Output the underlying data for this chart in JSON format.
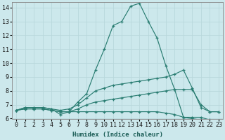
{
  "xlabel": "Humidex (Indice chaleur)",
  "bg_color": "#cce8ec",
  "grid_color": "#b8d8dc",
  "line_color": "#2a7d72",
  "xlim": [
    -0.5,
    23.5
  ],
  "ylim": [
    6,
    14.4
  ],
  "yticks": [
    6,
    7,
    8,
    9,
    10,
    11,
    12,
    13,
    14
  ],
  "xticks": [
    0,
    1,
    2,
    3,
    4,
    5,
    6,
    7,
    8,
    9,
    10,
    11,
    12,
    13,
    14,
    15,
    16,
    17,
    18,
    19,
    20,
    21,
    22,
    23
  ],
  "series": [
    {
      "x": [
        0,
        1,
        2,
        3,
        4,
        5,
        6,
        7,
        8,
        9,
        10,
        11,
        12,
        13,
        14,
        15,
        16,
        17,
        18,
        19,
        20,
        21,
        22,
        23
      ],
      "y": [
        6.6,
        6.8,
        6.8,
        6.8,
        6.7,
        6.3,
        6.5,
        7.2,
        7.8,
        9.5,
        11.0,
        12.7,
        13.0,
        14.1,
        14.3,
        13.0,
        11.8,
        9.8,
        8.1,
        6.1,
        6.0,
        5.9,
        5.85,
        5.85
      ]
    },
    {
      "x": [
        0,
        1,
        2,
        3,
        4,
        5,
        6,
        7,
        8,
        9,
        10,
        11,
        12,
        13,
        14,
        15,
        16,
        17,
        18,
        19,
        20,
        21,
        22,
        23
      ],
      "y": [
        6.6,
        6.8,
        6.8,
        6.8,
        6.7,
        6.6,
        6.7,
        7.0,
        7.5,
        8.0,
        8.2,
        8.4,
        8.5,
        8.6,
        8.7,
        8.8,
        8.9,
        9.0,
        9.2,
        9.5,
        8.2,
        6.8,
        6.5,
        6.5
      ]
    },
    {
      "x": [
        0,
        1,
        2,
        3,
        4,
        5,
        6,
        7,
        8,
        9,
        10,
        11,
        12,
        13,
        14,
        15,
        16,
        17,
        18,
        19,
        20,
        21,
        22,
        23
      ],
      "y": [
        6.6,
        6.7,
        6.7,
        6.7,
        6.6,
        6.5,
        6.5,
        6.7,
        7.0,
        7.2,
        7.3,
        7.4,
        7.5,
        7.6,
        7.7,
        7.8,
        7.9,
        8.0,
        8.1,
        8.1,
        8.1,
        7.0,
        6.5,
        6.5
      ]
    },
    {
      "x": [
        0,
        1,
        2,
        3,
        4,
        5,
        6,
        7,
        8,
        9,
        10,
        11,
        12,
        13,
        14,
        15,
        16,
        17,
        18,
        19,
        20,
        21,
        22,
        23
      ],
      "y": [
        6.6,
        6.7,
        6.7,
        6.7,
        6.6,
        6.5,
        6.5,
        6.5,
        6.5,
        6.5,
        6.5,
        6.5,
        6.5,
        6.5,
        6.5,
        6.5,
        6.5,
        6.4,
        6.3,
        6.1,
        6.1,
        6.1,
        5.9,
        5.85
      ]
    }
  ]
}
